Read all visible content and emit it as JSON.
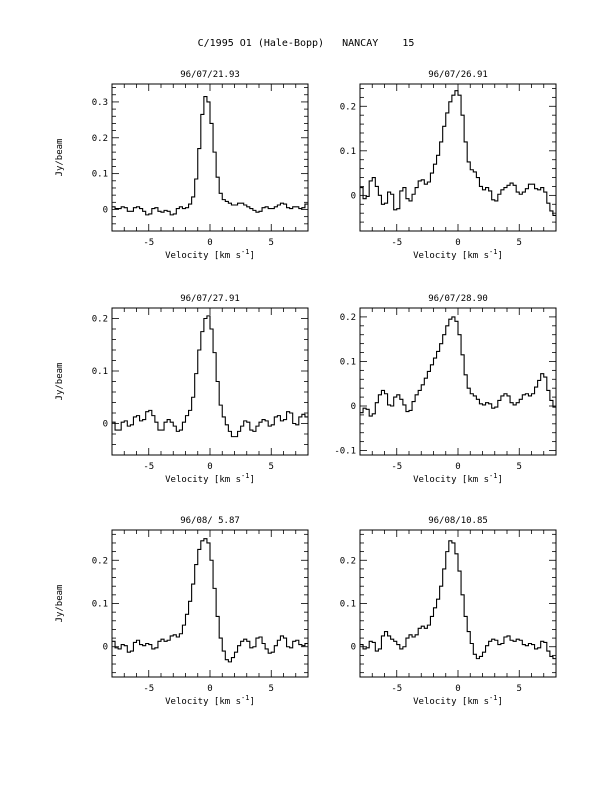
{
  "title": "C/1995 O1 (Hale-Bopp)   NANCAY    15",
  "chart_data": [
    {
      "type": "line",
      "step": true,
      "title": "96/07/21.93",
      "xlabel": "Velocity [km s^-1]",
      "ylabel": "Jy/beam",
      "xlim": [
        -8,
        8
      ],
      "ylim": [
        -0.06,
        0.35
      ],
      "xticks": [
        -5,
        0,
        5
      ],
      "yticks": [
        0,
        0.1,
        0.2,
        0.3
      ],
      "ytick_labels": [
        "0",
        "0.1",
        "0.2",
        "0.3"
      ],
      "grid": false,
      "x": [
        -8,
        -7.5,
        -7,
        -6.5,
        -6,
        -5.5,
        -5,
        -4.5,
        -4,
        -3.5,
        -3,
        -2.5,
        -2,
        -1.5,
        -1.25,
        -1,
        -0.75,
        -0.5,
        -0.25,
        0,
        0.25,
        0.5,
        0.75,
        1,
        1.5,
        2,
        2.5,
        3,
        3.5,
        4,
        4.5,
        5,
        5.5,
        6,
        6.5,
        7,
        7.5,
        8
      ],
      "y": [
        0.01,
        0,
        0.01,
        -0.01,
        0.01,
        0,
        -0.02,
        0.01,
        -0.01,
        0,
        -0.02,
        0.01,
        0,
        0.02,
        0.05,
        0.12,
        0.22,
        0.31,
        0.32,
        0.28,
        0.2,
        0.12,
        0.06,
        0.03,
        0.02,
        0.01,
        0.02,
        0.01,
        0,
        -0.01,
        0.01,
        0,
        0.01,
        0.02,
        0,
        0.01,
        0,
        0.02
      ]
    },
    {
      "type": "line",
      "step": true,
      "title": "96/07/26.91",
      "xlabel": "Velocity [km s^-1]",
      "ylabel": "",
      "xlim": [
        -8,
        8
      ],
      "ylim": [
        -0.08,
        0.25
      ],
      "xticks": [
        -5,
        0,
        5
      ],
      "yticks": [
        0,
        0.1,
        0.2
      ],
      "ytick_labels": [
        "0",
        "0.1",
        "0.2"
      ],
      "grid": false,
      "x": [
        -8,
        -7.5,
        -7,
        -6.5,
        -6,
        -5.5,
        -5,
        -4.5,
        -4,
        -3.5,
        -3,
        -2.5,
        -2,
        -1.5,
        -1.25,
        -1,
        -0.75,
        -0.5,
        -0.25,
        0,
        0.25,
        0.5,
        0.75,
        1,
        1.5,
        2,
        2.5,
        3,
        3.5,
        4,
        4.5,
        5,
        5.5,
        6,
        6.5,
        7,
        7.5,
        8
      ],
      "y": [
        0.03,
        -0.02,
        0.05,
        0.01,
        -0.03,
        0.02,
        -0.05,
        0.03,
        -0.02,
        0.01,
        0.04,
        0.02,
        0.06,
        0.1,
        0.14,
        0.17,
        0.2,
        0.22,
        0.23,
        0.24,
        0.21,
        0.15,
        0.09,
        0.06,
        0.05,
        0.01,
        0.02,
        -0.02,
        0.01,
        0.02,
        0.03,
        0,
        0.01,
        0.03,
        0.01,
        0.02,
        -0.03,
        -0.05
      ]
    },
    {
      "type": "line",
      "step": true,
      "title": "96/07/27.91",
      "xlabel": "Velocity [km s^-1]",
      "ylabel": "Jy/beam",
      "xlim": [
        -8,
        8
      ],
      "ylim": [
        -0.06,
        0.22
      ],
      "xticks": [
        -5,
        0,
        5
      ],
      "yticks": [
        0,
        0.1,
        0.2
      ],
      "ytick_labels": [
        "0",
        "0.1",
        "0.2"
      ],
      "grid": false,
      "x": [
        -8,
        -7.5,
        -7,
        -6.5,
        -6,
        -5.5,
        -5,
        -4.5,
        -4,
        -3.5,
        -3,
        -2.5,
        -2,
        -1.5,
        -1.25,
        -1,
        -0.75,
        -0.5,
        -0.25,
        0,
        0.25,
        0.5,
        0.75,
        1,
        1.5,
        2,
        2.5,
        3,
        3.5,
        4,
        4.5,
        5,
        5.5,
        6,
        6.5,
        7,
        7.5,
        8
      ],
      "y": [
        0.01,
        -0.02,
        0.01,
        -0.01,
        0.02,
        0,
        0.03,
        0.01,
        -0.02,
        0.01,
        0,
        -0.02,
        0.01,
        0.03,
        0.07,
        0.12,
        0.16,
        0.19,
        0.21,
        0.2,
        0.16,
        0.11,
        0.05,
        0.02,
        -0.01,
        -0.03,
        -0.01,
        0.01,
        -0.02,
        0,
        0.01,
        -0.01,
        0.02,
        0,
        0.03,
        -0.01,
        0.02,
        0.01
      ]
    },
    {
      "type": "line",
      "step": true,
      "title": "96/07/28.90",
      "xlabel": "Velocity [km s^-1]",
      "ylabel": "",
      "xlim": [
        -8,
        8
      ],
      "ylim": [
        -0.11,
        0.22
      ],
      "xticks": [
        -5,
        0,
        5
      ],
      "yticks": [
        -0.1,
        0,
        0.1,
        0.2
      ],
      "ytick_labels": [
        "-0.1",
        "0",
        "0.1",
        "0.2"
      ],
      "grid": false,
      "x": [
        -8,
        -7.5,
        -7,
        -6.5,
        -6,
        -5.5,
        -5,
        -4.5,
        -4,
        -3.5,
        -3,
        -2.5,
        -2,
        -1.5,
        -1.25,
        -1,
        -0.75,
        -0.5,
        -0.25,
        0,
        0.25,
        0.5,
        0.75,
        1,
        1.5,
        2,
        2.5,
        3,
        3.5,
        4,
        4.5,
        5,
        5.5,
        6,
        6.5,
        7,
        7.5,
        8
      ],
      "y": [
        -0.02,
        0,
        -0.03,
        0.02,
        0.04,
        -0.01,
        0.03,
        0.01,
        -0.02,
        0.02,
        0.04,
        0.07,
        0.1,
        0.13,
        0.15,
        0.17,
        0.19,
        0.2,
        0.2,
        0.18,
        0.14,
        0.09,
        0.05,
        0.03,
        0.02,
        0,
        0.01,
        -0.01,
        0.02,
        0.03,
        0,
        0.01,
        0.03,
        0.02,
        0.05,
        0.08,
        0.02,
        -0.01
      ]
    },
    {
      "type": "line",
      "step": true,
      "title": "96/08/ 5.87",
      "xlabel": "Velocity [km s^-1]",
      "ylabel": "Jy/beam",
      "xlim": [
        -8,
        8
      ],
      "ylim": [
        -0.07,
        0.27
      ],
      "xticks": [
        -5,
        0,
        5
      ],
      "yticks": [
        0,
        0.1,
        0.2
      ],
      "ytick_labels": [
        "0",
        "0.1",
        "0.2"
      ],
      "grid": false,
      "x": [
        -8,
        -7.5,
        -7,
        -6.5,
        -6,
        -5.5,
        -5,
        -4.5,
        -4,
        -3.5,
        -3,
        -2.5,
        -2,
        -1.5,
        -1.25,
        -1,
        -0.75,
        -0.5,
        -0.25,
        0,
        0.25,
        0.5,
        0.75,
        1,
        1.5,
        2,
        2.5,
        3,
        3.5,
        4,
        4.5,
        5,
        5.5,
        6,
        6.5,
        7,
        7.5,
        8
      ],
      "y": [
        0.02,
        -0.01,
        0.01,
        -0.02,
        0.02,
        0,
        0.01,
        -0.01,
        0.02,
        0.01,
        0.03,
        0.02,
        0.06,
        0.12,
        0.17,
        0.21,
        0.24,
        0.25,
        0.25,
        0.23,
        0.17,
        0.1,
        0.04,
        0,
        -0.04,
        -0.02,
        0.01,
        0.02,
        -0.01,
        0.03,
        0,
        -0.02,
        0.01,
        0.03,
        -0.01,
        0.02,
        0,
        0.01
      ]
    },
    {
      "type": "line",
      "step": true,
      "title": "96/08/10.85",
      "xlabel": "Velocity [km s^-1]",
      "ylabel": "",
      "xlim": [
        -8,
        8
      ],
      "ylim": [
        -0.07,
        0.27
      ],
      "xticks": [
        -5,
        0,
        5
      ],
      "yticks": [
        0,
        0.1,
        0.2
      ],
      "ytick_labels": [
        "0",
        "0.1",
        "0.2"
      ],
      "grid": false,
      "x": [
        -8,
        -7.5,
        -7,
        -6.5,
        -6,
        -5.5,
        -5,
        -4.5,
        -4,
        -3.5,
        -3,
        -2.5,
        -2,
        -1.5,
        -1.25,
        -1,
        -0.75,
        -0.5,
        -0.25,
        0,
        0.25,
        0.5,
        0.75,
        1,
        1.5,
        2,
        2.5,
        3,
        3.5,
        4,
        4.5,
        5,
        5.5,
        6,
        6.5,
        7,
        7.5,
        8
      ],
      "y": [
        0.01,
        -0.01,
        0.02,
        -0.02,
        0.04,
        0.02,
        0.01,
        -0.01,
        0.03,
        0.02,
        0.05,
        0.04,
        0.08,
        0.12,
        0.16,
        0.2,
        0.24,
        0.25,
        0.23,
        0.2,
        0.15,
        0.09,
        0.05,
        0.02,
        -0.03,
        -0.02,
        0.01,
        0.02,
        0,
        0.03,
        0.01,
        0.02,
        0,
        0.01,
        -0.01,
        0.02,
        -0.02,
        -0.03
      ]
    }
  ]
}
